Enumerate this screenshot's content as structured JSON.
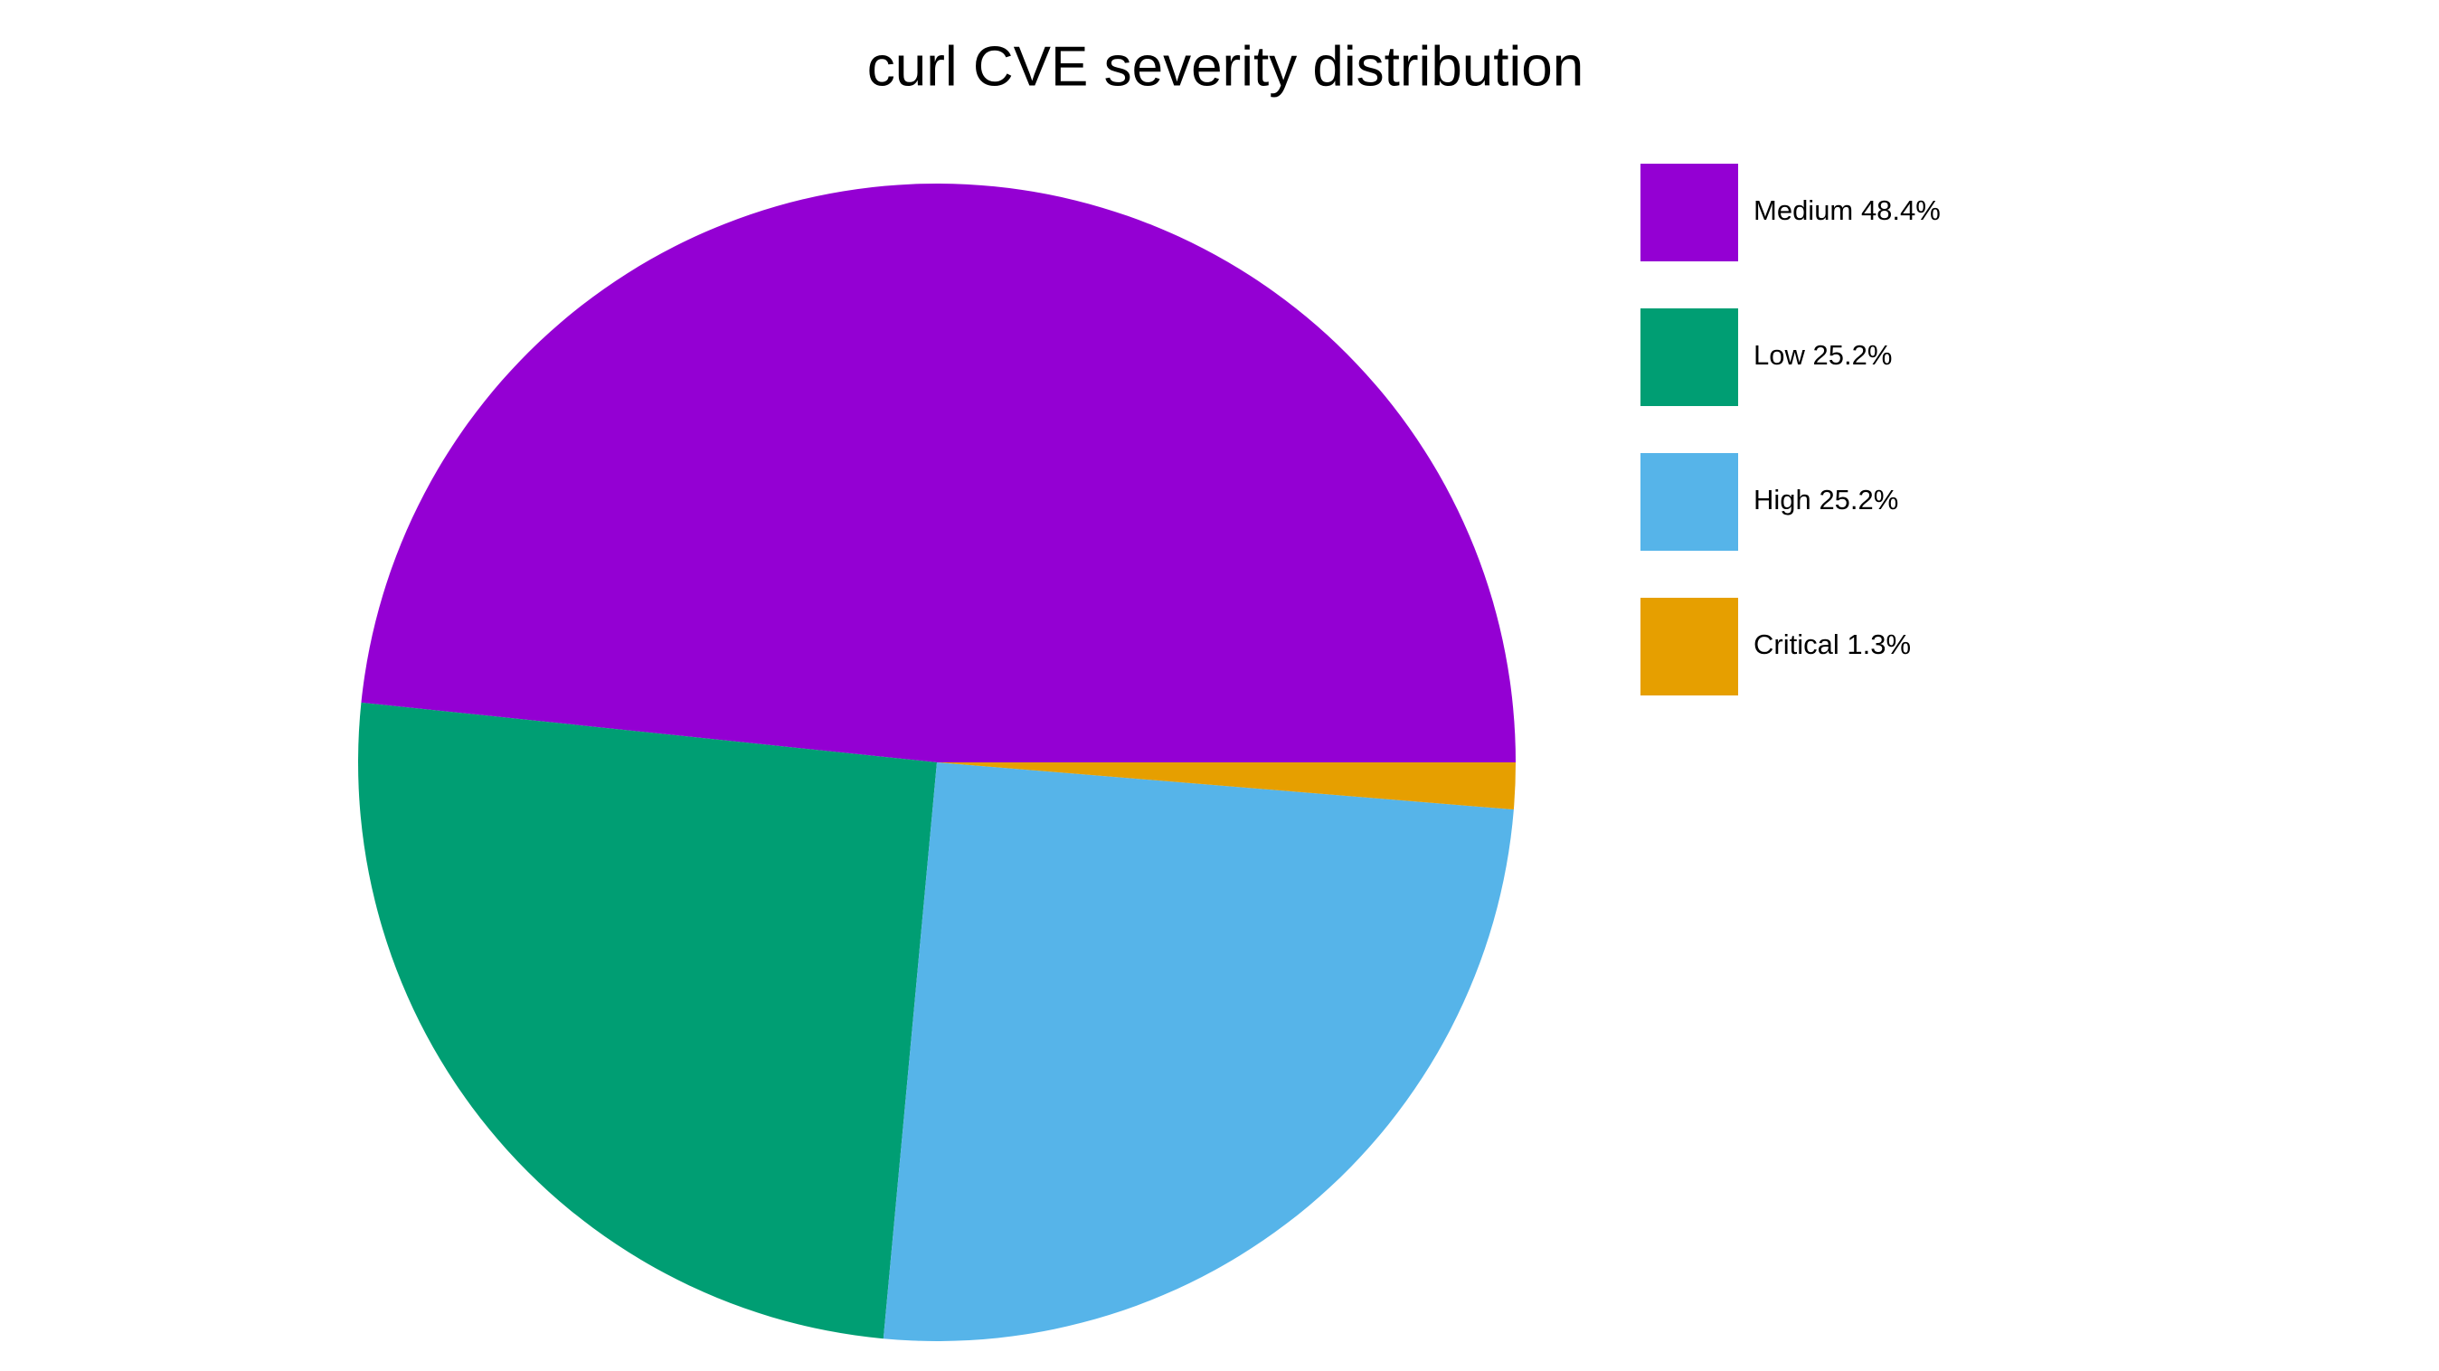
{
  "chart_data": {
    "type": "pie",
    "title": "curl CVE severity distribution",
    "categories": [
      "Medium",
      "Low",
      "High",
      "Critical"
    ],
    "values": [
      48.4,
      25.2,
      25.2,
      1.3
    ],
    "value_labels": [
      "48.4%",
      "25.2%",
      "25.2%",
      "1.3%"
    ],
    "colors": [
      "#9400d3",
      "#009e73",
      "#56b4e9",
      "#e69f00"
    ],
    "legend": "upper right"
  }
}
